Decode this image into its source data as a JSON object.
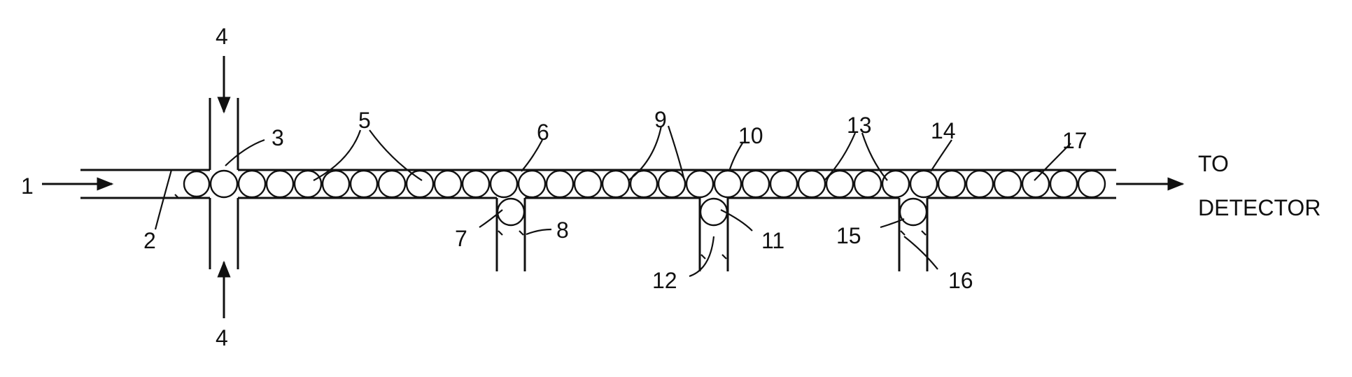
{
  "labels": {
    "l1": "1",
    "l2": "2",
    "l3": "3",
    "l4_top": "4",
    "l4_bottom": "4",
    "l5": "5",
    "l6": "6",
    "l7": "7",
    "l8": "8",
    "l9": "9",
    "l10": "10",
    "l11": "11",
    "l12": "12",
    "l13": "13",
    "l14": "14",
    "l15": "15",
    "l16": "16",
    "l17": "17",
    "to": "TO",
    "detector": "DETECTOR"
  }
}
